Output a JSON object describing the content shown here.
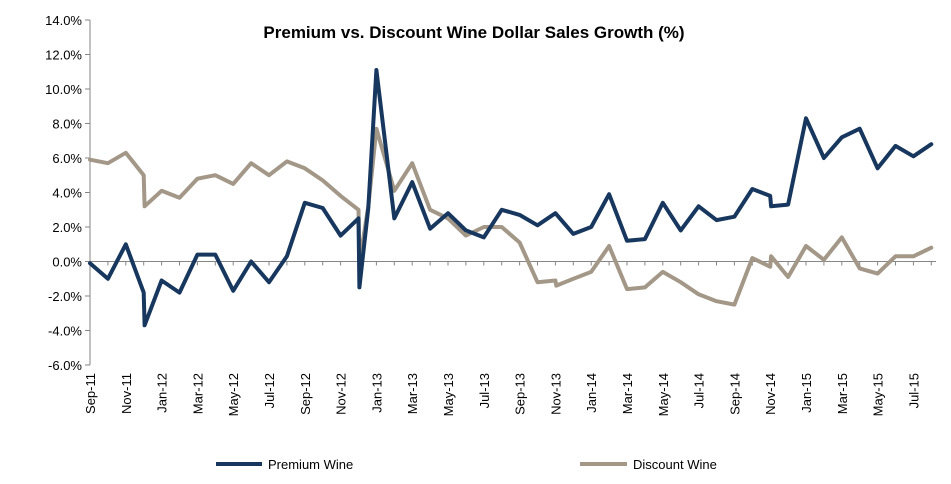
{
  "chart_data": {
    "type": "line",
    "title": "Premium vs. Discount Wine Dollar Sales Growth (%)",
    "xlabel": "",
    "ylabel": "",
    "ylim": [
      -6,
      14
    ],
    "yticks": [
      14,
      12,
      10,
      8,
      6,
      4,
      2,
      0,
      -2,
      -4,
      -6
    ],
    "ytick_labels": [
      "14.0%",
      "12.0%",
      "10.0%",
      "8.0%",
      "6.0%",
      "4.0%",
      "2.0%",
      "0.0%",
      "-2.0%",
      "-4.0%",
      "-6.0%"
    ],
    "x_tick_labels": [
      {
        "index": 0,
        "label": "Sep-11"
      },
      {
        "index": 2,
        "label": "Nov-11"
      },
      {
        "index": 4,
        "label": "Jan-12"
      },
      {
        "index": 6,
        "label": "Mar-12"
      },
      {
        "index": 8,
        "label": "May-12"
      },
      {
        "index": 10,
        "label": "Jul-12"
      },
      {
        "index": 12,
        "label": "Sep-12"
      },
      {
        "index": 14,
        "label": "Nov-12"
      },
      {
        "index": 16,
        "label": "Jan-13"
      },
      {
        "index": 18,
        "label": "Mar-13"
      },
      {
        "index": 20,
        "label": "May-13"
      },
      {
        "index": 22,
        "label": "Jul-13"
      },
      {
        "index": 24,
        "label": "Sep-13"
      },
      {
        "index": 26,
        "label": "Nov-13"
      },
      {
        "index": 28,
        "label": "Jan-14"
      },
      {
        "index": 30,
        "label": "Mar-14"
      },
      {
        "index": 32,
        "label": "May-14"
      },
      {
        "index": 34,
        "label": "Jul-14"
      },
      {
        "index": 36,
        "label": "Sep-14"
      },
      {
        "index": 38,
        "label": "Nov-14"
      },
      {
        "index": 40,
        "label": "Jan-15"
      },
      {
        "index": 42,
        "label": "Mar-15"
      },
      {
        "index": 44,
        "label": "May-15"
      },
      {
        "index": 46,
        "label": "Jul-15"
      }
    ],
    "grid": "none",
    "legend_position": "bottom",
    "series": [
      {
        "name": "Premium Wine",
        "color": "#17375e",
        "points": [
          [
            0,
            -0.1
          ],
          [
            1,
            -1.0
          ],
          [
            2,
            1.0
          ],
          [
            3,
            -1.8
          ],
          [
            3.05,
            -3.7
          ],
          [
            4,
            -1.1
          ],
          [
            5,
            -1.8
          ],
          [
            6,
            0.4
          ],
          [
            7,
            0.4
          ],
          [
            8,
            -1.7
          ],
          [
            9,
            0.0
          ],
          [
            10,
            -1.2
          ],
          [
            11,
            0.3
          ],
          [
            12,
            3.4
          ],
          [
            13,
            3.1
          ],
          [
            14,
            1.5
          ],
          [
            15,
            2.5
          ],
          [
            15.05,
            -1.5
          ],
          [
            15.55,
            3.1
          ],
          [
            16,
            11.1
          ],
          [
            17,
            2.5
          ],
          [
            18,
            4.6
          ],
          [
            19,
            1.9
          ],
          [
            20,
            2.8
          ],
          [
            21,
            1.8
          ],
          [
            22,
            1.4
          ],
          [
            23,
            3.0
          ],
          [
            24,
            2.7
          ],
          [
            25,
            2.1
          ],
          [
            26,
            2.8
          ],
          [
            27,
            1.6
          ],
          [
            28,
            2.0
          ],
          [
            29,
            3.9
          ],
          [
            30,
            1.2
          ],
          [
            31,
            1.3
          ],
          [
            32,
            3.4
          ],
          [
            33,
            1.8
          ],
          [
            34,
            3.2
          ],
          [
            35,
            2.4
          ],
          [
            36,
            2.6
          ],
          [
            37,
            4.2
          ],
          [
            38,
            3.8
          ],
          [
            38.05,
            3.2
          ],
          [
            39,
            3.3
          ],
          [
            40,
            8.3
          ],
          [
            41,
            6.0
          ],
          [
            42,
            7.2
          ],
          [
            43,
            7.7
          ],
          [
            44,
            5.4
          ],
          [
            45,
            6.7
          ],
          [
            46,
            6.1
          ],
          [
            47,
            6.8
          ]
        ]
      },
      {
        "name": "Discount Wine",
        "color": "#a39787",
        "points": [
          [
            0,
            5.9
          ],
          [
            1,
            5.7
          ],
          [
            2,
            6.3
          ],
          [
            3,
            5.0
          ],
          [
            3.05,
            3.2
          ],
          [
            4,
            4.1
          ],
          [
            5,
            3.7
          ],
          [
            6,
            4.8
          ],
          [
            7,
            5.0
          ],
          [
            8,
            4.5
          ],
          [
            9,
            5.7
          ],
          [
            10,
            5.0
          ],
          [
            11,
            5.8
          ],
          [
            12,
            5.4
          ],
          [
            13,
            4.7
          ],
          [
            14,
            3.8
          ],
          [
            15,
            3.0
          ],
          [
            15.05,
            -0.1
          ],
          [
            15.55,
            3.2
          ],
          [
            16,
            7.7
          ],
          [
            17,
            4.1
          ],
          [
            18,
            5.7
          ],
          [
            19,
            3.0
          ],
          [
            20,
            2.5
          ],
          [
            21,
            1.5
          ],
          [
            22,
            2.0
          ],
          [
            23,
            2.0
          ],
          [
            24,
            1.1
          ],
          [
            25,
            -1.2
          ],
          [
            26,
            -1.1
          ],
          [
            26.05,
            -1.4
          ],
          [
            27,
            -1.0
          ],
          [
            28,
            -0.6
          ],
          [
            29,
            0.9
          ],
          [
            30,
            -1.6
          ],
          [
            31,
            -1.5
          ],
          [
            32,
            -0.6
          ],
          [
            33,
            -1.2
          ],
          [
            34,
            -1.9
          ],
          [
            35,
            -2.3
          ],
          [
            36,
            -2.5
          ],
          [
            37,
            0.2
          ],
          [
            38,
            -0.3
          ],
          [
            38.05,
            0.3
          ],
          [
            39,
            -0.9
          ],
          [
            40,
            0.9
          ],
          [
            41,
            0.1
          ],
          [
            42,
            1.4
          ],
          [
            43,
            -0.4
          ],
          [
            44,
            -0.7
          ],
          [
            45,
            0.3
          ],
          [
            46,
            0.3
          ],
          [
            47,
            0.8
          ]
        ]
      }
    ]
  }
}
